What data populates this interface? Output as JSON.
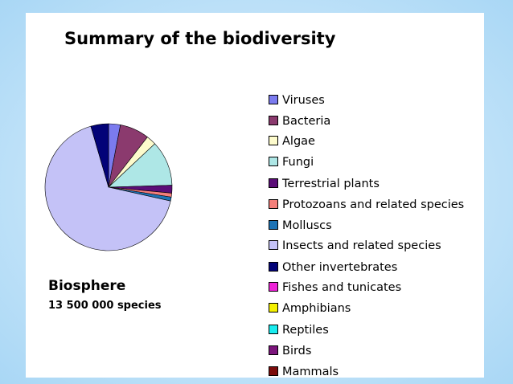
{
  "chart_data": {
    "type": "pie",
    "title": "Summary of the biodiversity",
    "legend_position": "right",
    "slices": [
      {
        "label": "Viruses",
        "value": 3.0,
        "color": "#7b7bef"
      },
      {
        "label": "Bacteria",
        "value": 7.5,
        "color": "#8b3a6e"
      },
      {
        "label": "Algae",
        "value": 2.5,
        "color": "#fdfbcc"
      },
      {
        "label": "Fungi",
        "value": 11.5,
        "color": "#aee7e6"
      },
      {
        "label": "Terrestrial plants",
        "value": 2.0,
        "color": "#5b0d78"
      },
      {
        "label": "Protozoans and related species",
        "value": 1.0,
        "color": "#f47f7a"
      },
      {
        "label": "Molluscs",
        "value": 1.0,
        "color": "#1d73b5"
      },
      {
        "label": "Insects and related species",
        "value": 67.0,
        "color": "#c4c2f7"
      },
      {
        "label": "Other invertebrates",
        "value": 4.5,
        "color": "#030378"
      },
      {
        "label": "Fishes and tunicates",
        "value": 0,
        "color": "#ee22d7"
      },
      {
        "label": "Amphibians",
        "value": 0,
        "color": "#f4f000"
      },
      {
        "label": "Reptiles",
        "value": 0,
        "color": "#19ecef"
      },
      {
        "label": "Birds",
        "value": 0,
        "color": "#7c157c"
      },
      {
        "label": "Mammals",
        "value": 0,
        "color": "#7b0c0c"
      }
    ]
  },
  "annotation": {
    "title": "Biosphere",
    "subtitle": "13 500 000 species"
  }
}
